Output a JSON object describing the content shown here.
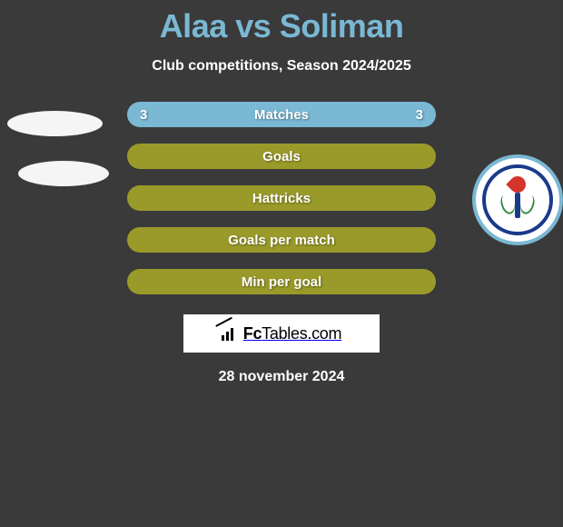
{
  "title": "Alaa vs Soliman",
  "subtitle": "Club competitions, Season 2024/2025",
  "date": "28 november 2024",
  "brand": "FcTables.com",
  "colors": {
    "accent_blue": "#7ab8d4",
    "accent_olive": "#9a9a2a",
    "background": "#3a3a3a",
    "text_light": "#ffffff",
    "badge_blue": "#1a3a8a",
    "badge_red": "#d4342a",
    "badge_green": "#2a8a3a"
  },
  "bars": [
    {
      "label": "Matches",
      "left": "3",
      "right": "3",
      "bg": "blue"
    },
    {
      "label": "Goals",
      "left": "",
      "right": "",
      "bg": "olive"
    },
    {
      "label": "Hattricks",
      "left": "",
      "right": "",
      "bg": "olive"
    },
    {
      "label": "Goals per match",
      "left": "",
      "right": "",
      "bg": "olive"
    },
    {
      "label": "Min per goal",
      "left": "",
      "right": "",
      "bg": "olive"
    }
  ]
}
